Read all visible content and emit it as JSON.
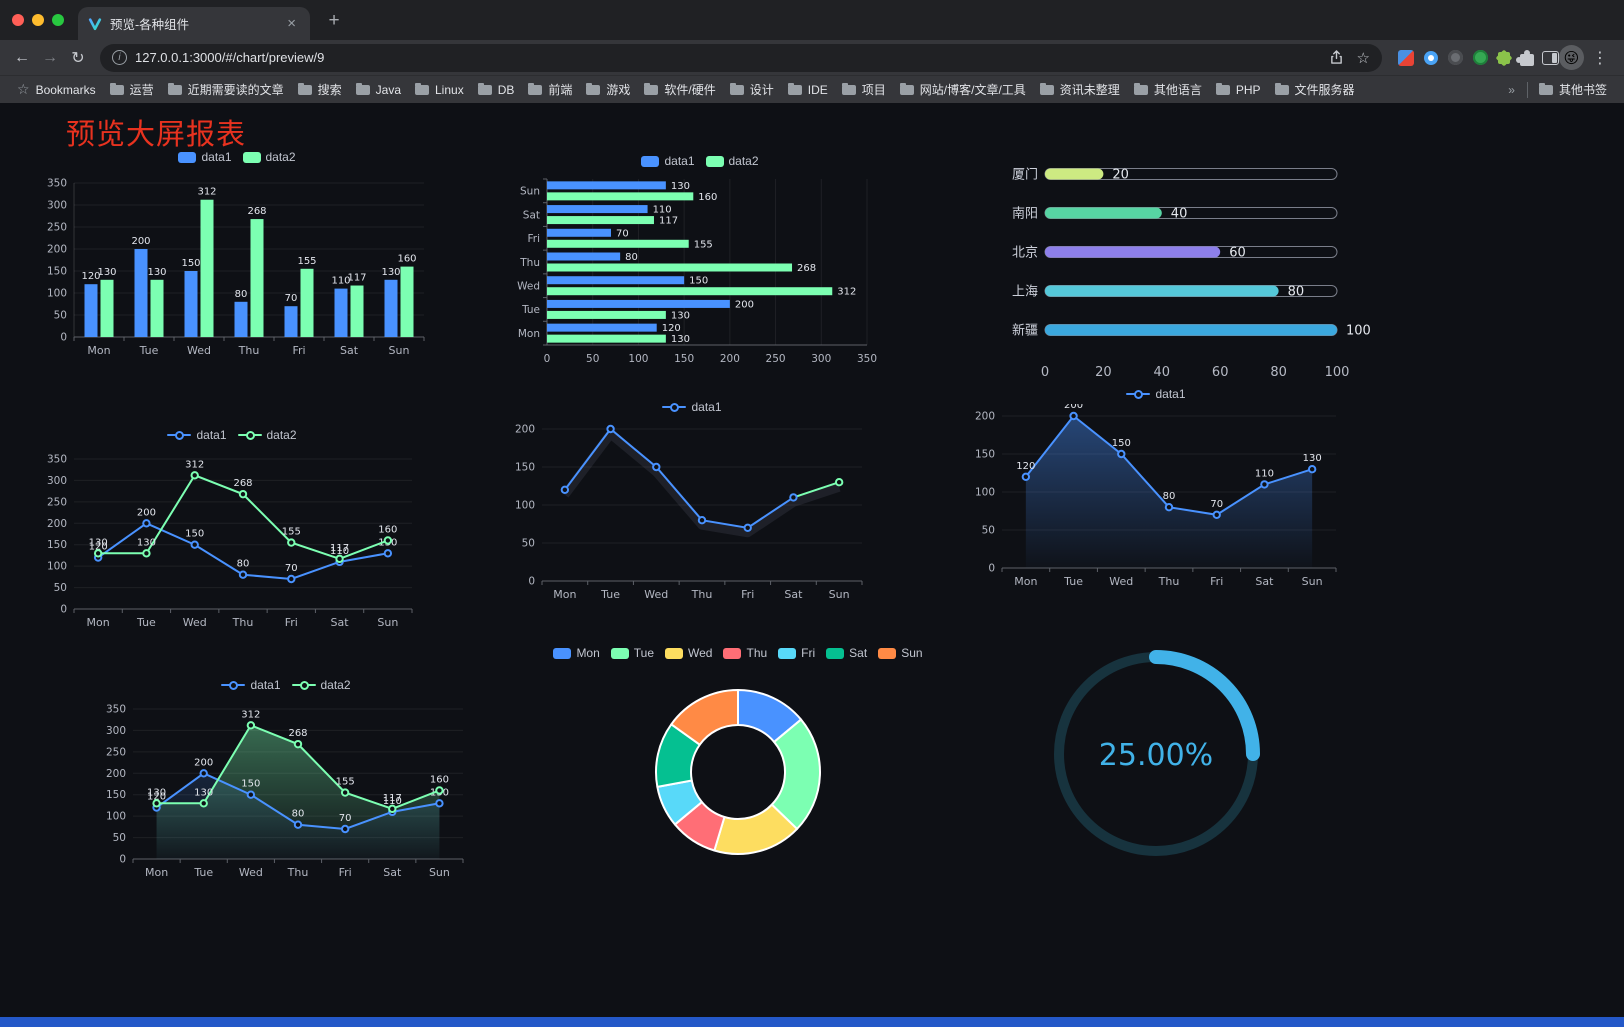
{
  "browser": {
    "tab": {
      "title": "预览-各种组件"
    },
    "address": {
      "url": "127.0.0.1:3000/#/chart/preview/9"
    },
    "avatar": "😜",
    "icons": {
      "back": "←",
      "forward": "→",
      "reload": "↻",
      "new_tab": "+",
      "tab_close": "×",
      "menu": "⋮",
      "bookmarks_star": "☆",
      "bookmark_star": "☆",
      "info": "i"
    },
    "bookmarks": {
      "label": "Bookmarks",
      "overflow": "»",
      "other": "其他书签",
      "items": [
        "运营",
        "近期需要读的文章",
        "搜索",
        "Java",
        "Linux",
        "DB",
        "前端",
        "游戏",
        "软件/硬件",
        "设计",
        "IDE",
        "项目",
        "网站/博客/文章/工具",
        "资讯未整理",
        "其他语言",
        "PHP",
        "文件服务器"
      ]
    }
  },
  "page": {
    "title": "预览大屏报表",
    "title_color": "#e8321f",
    "background": "#0e1015",
    "footer_color": "#2458c8"
  },
  "chart_data": [
    {
      "id": "bar-vertical",
      "type": "vbar",
      "categories": [
        "Mon",
        "Tue",
        "Wed",
        "Thu",
        "Fri",
        "Sat",
        "Sun"
      ],
      "ylim": [
        0,
        350
      ],
      "ytick": 50,
      "series": [
        {
          "name": "data1",
          "color": "#4992ff",
          "values": [
            120,
            200,
            150,
            80,
            70,
            110,
            130
          ]
        },
        {
          "name": "data2",
          "color": "#7cffb2",
          "values": [
            130,
            130,
            312,
            268,
            155,
            117,
            160
          ]
        }
      ]
    },
    {
      "id": "bar-horizontal",
      "type": "hbar",
      "categories": [
        "Mon",
        "Tue",
        "Wed",
        "Thu",
        "Fri",
        "Sat",
        "Sun"
      ],
      "xlim": [
        0,
        350
      ],
      "xtick": 50,
      "series": [
        {
          "name": "data1",
          "color": "#4992ff",
          "values": [
            120,
            200,
            150,
            80,
            70,
            110,
            130
          ]
        },
        {
          "name": "data2",
          "color": "#7cffb2",
          "values": [
            130,
            130,
            312,
            268,
            155,
            117,
            160
          ]
        }
      ]
    },
    {
      "id": "progress",
      "type": "progress",
      "max": 100,
      "xticks": [
        0,
        20,
        40,
        60,
        80,
        100
      ],
      "items": [
        {
          "label": "厦门",
          "value": 20,
          "color": "#cdea82"
        },
        {
          "label": "南阳",
          "value": 40,
          "color": "#57d4a3"
        },
        {
          "label": "北京",
          "value": 60,
          "color": "#8d7fea"
        },
        {
          "label": "上海",
          "value": 80,
          "color": "#55c8d9"
        },
        {
          "label": "新疆",
          "value": 100,
          "color": "#3ba8de"
        }
      ]
    },
    {
      "id": "line2",
      "type": "line",
      "categories": [
        "Mon",
        "Tue",
        "Wed",
        "Thu",
        "Fri",
        "Sat",
        "Sun"
      ],
      "ylim": [
        0,
        350
      ],
      "ytick": 50,
      "labels": true,
      "series": [
        {
          "name": "data1",
          "color": "#4992ff",
          "values": [
            120,
            200,
            150,
            80,
            70,
            110,
            130
          ]
        },
        {
          "name": "data2",
          "color": "#7cffb2",
          "values": [
            130,
            130,
            312,
            268,
            155,
            117,
            160
          ]
        }
      ]
    },
    {
      "id": "line1",
      "type": "line",
      "categories": [
        "Mon",
        "Tue",
        "Wed",
        "Thu",
        "Fri",
        "Sat",
        "Sun"
      ],
      "ylim": [
        0,
        200
      ],
      "ytick": 50,
      "labels": false,
      "halo": true,
      "tail_color": "#7cffb2",
      "series": [
        {
          "name": "data1",
          "color": "#4992ff",
          "values": [
            120,
            200,
            150,
            80,
            70,
            110,
            130
          ]
        }
      ]
    },
    {
      "id": "area1",
      "type": "line",
      "categories": [
        "Mon",
        "Tue",
        "Wed",
        "Thu",
        "Fri",
        "Sat",
        "Sun"
      ],
      "ylim": [
        0,
        200
      ],
      "ytick": 50,
      "labels": true,
      "series": [
        {
          "name": "data1",
          "color": "#4992ff",
          "values": [
            120,
            200,
            150,
            80,
            70,
            110,
            130
          ],
          "area": true,
          "area_opacity": 0.42
        }
      ]
    },
    {
      "id": "area2",
      "type": "line",
      "categories": [
        "Mon",
        "Tue",
        "Wed",
        "Thu",
        "Fri",
        "Sat",
        "Sun"
      ],
      "ylim": [
        0,
        350
      ],
      "ytick": 50,
      "labels": true,
      "series": [
        {
          "name": "data1",
          "color": "#4992ff",
          "values": [
            120,
            200,
            150,
            80,
            70,
            110,
            130
          ],
          "area": true,
          "area_opacity": 0.16
        },
        {
          "name": "data2",
          "color": "#7cffb2",
          "values": [
            130,
            130,
            312,
            268,
            155,
            117,
            160
          ],
          "area": true,
          "area_opacity": 0.38
        }
      ]
    },
    {
      "id": "donut",
      "type": "pie",
      "border_color": "#ffffff",
      "items": [
        {
          "name": "Mon",
          "value": 120,
          "color": "#4992ff"
        },
        {
          "name": "Tue",
          "value": 200,
          "color": "#7cffb2"
        },
        {
          "name": "Wed",
          "value": 150,
          "color": "#fddd60"
        },
        {
          "name": "Thu",
          "value": 80,
          "color": "#ff6e76"
        },
        {
          "name": "Fri",
          "value": 70,
          "color": "#58d9f9"
        },
        {
          "name": "Sat",
          "value": 110,
          "color": "#05c091"
        },
        {
          "name": "Sun",
          "value": 130,
          "color": "#ff8a45"
        }
      ]
    },
    {
      "id": "gauge",
      "type": "gauge",
      "value": 25,
      "label": "25.00%",
      "color": "#41b2e8",
      "track_color": "#17333e"
    }
  ]
}
